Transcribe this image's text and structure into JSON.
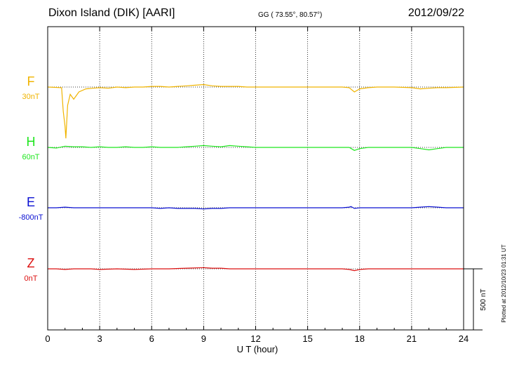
{
  "header": {
    "title": "Dixon Island (DIK)  [AARI]",
    "coords": "GG ( 73.55°,  80.57°)",
    "date": "2012/09/22"
  },
  "colors": {
    "F": "#f0b400",
    "H": "#1ee61e",
    "E": "#0a10d2",
    "Z": "#dc1010"
  },
  "chart_data": {
    "type": "line",
    "title": "Dixon Island (DIK)  [AARI]",
    "date": "2012/09/22",
    "xlabel": "U T (hour)",
    "xlim": [
      0,
      24
    ],
    "xticks": [
      0,
      3,
      6,
      9,
      12,
      15,
      18,
      21,
      24
    ],
    "x_tick_labels": [
      "0",
      "3",
      "6",
      "9",
      "12",
      "15",
      "18",
      "21",
      "24"
    ],
    "scale_bar": "500 nT",
    "scale_bar_nT": 500,
    "plotted_note": "Plotted at 2012/10/23 01:31  UT",
    "grid": true,
    "series": [
      {
        "name": "F",
        "baseline": "30nT",
        "x": [
          0,
          0.8,
          0.9,
          1.0,
          1.05,
          1.1,
          1.15,
          1.3,
          1.5,
          1.8,
          2.2,
          2.6,
          3,
          3.5,
          4,
          4.5,
          5,
          5.5,
          6,
          6.5,
          7,
          7.5,
          8,
          8.5,
          9,
          9.5,
          10,
          10.5,
          11,
          11.5,
          12,
          13,
          14,
          15,
          16,
          17,
          17.4,
          17.7,
          18,
          18.5,
          19,
          20,
          21,
          21.5,
          22,
          22.5,
          23,
          24
        ],
        "y": [
          0,
          -5,
          -200,
          -320,
          -420,
          -280,
          -150,
          -60,
          -100,
          -40,
          -15,
          -10,
          -5,
          -10,
          0,
          -5,
          0,
          0,
          5,
          5,
          0,
          5,
          10,
          15,
          20,
          10,
          5,
          5,
          5,
          0,
          0,
          0,
          0,
          0,
          0,
          0,
          -5,
          -40,
          -15,
          -5,
          0,
          0,
          -5,
          -15,
          -10,
          -5,
          -5,
          0
        ]
      },
      {
        "name": "H",
        "baseline": "60nT",
        "x": [
          0,
          0.5,
          1,
          1.5,
          2,
          2.5,
          3,
          3.5,
          4,
          4.5,
          5,
          5.5,
          6,
          6.5,
          7,
          7.5,
          8,
          8.5,
          9,
          9.5,
          10,
          10.5,
          11,
          11.5,
          12,
          13,
          14,
          15,
          16,
          17,
          17.4,
          17.7,
          18,
          18.5,
          19,
          20,
          21,
          21.5,
          22,
          22.5,
          23,
          24
        ],
        "y": [
          0,
          -5,
          10,
          5,
          5,
          0,
          5,
          0,
          0,
          5,
          0,
          0,
          5,
          0,
          0,
          0,
          5,
          10,
          15,
          10,
          5,
          15,
          10,
          5,
          0,
          0,
          0,
          0,
          0,
          0,
          0,
          -25,
          -10,
          0,
          0,
          0,
          0,
          -10,
          -20,
          -10,
          0,
          0
        ]
      },
      {
        "name": "E",
        "baseline": "-800nT",
        "x": [
          0,
          0.5,
          1,
          1.5,
          2,
          2.5,
          3,
          3.5,
          4,
          4.5,
          5,
          5.5,
          6,
          6.5,
          7,
          7.5,
          8,
          8.5,
          9,
          9.5,
          10,
          10.5,
          11,
          11.5,
          12,
          13,
          14,
          15,
          16,
          17,
          17.4,
          17.5,
          17.7,
          18,
          19,
          20,
          21,
          21.5,
          22,
          22.5,
          23,
          24
        ],
        "y": [
          0,
          0,
          5,
          0,
          0,
          0,
          0,
          0,
          0,
          0,
          0,
          0,
          0,
          -5,
          0,
          -5,
          -5,
          -5,
          -10,
          -5,
          -5,
          0,
          0,
          0,
          0,
          0,
          0,
          0,
          0,
          0,
          5,
          10,
          -5,
          0,
          0,
          0,
          0,
          5,
          10,
          5,
          0,
          0
        ]
      },
      {
        "name": "Z",
        "baseline": "0nT",
        "x": [
          0,
          0.5,
          1,
          1.5,
          2,
          2.5,
          3,
          4,
          5,
          6,
          7,
          8,
          9,
          9.5,
          10,
          10.5,
          11,
          11.5,
          12,
          13,
          14,
          15,
          16,
          17,
          17.4,
          17.7,
          18,
          18.5,
          19,
          20,
          21,
          22,
          23,
          24
        ],
        "y": [
          0,
          0,
          -5,
          0,
          0,
          0,
          -5,
          0,
          -5,
          0,
          0,
          5,
          10,
          5,
          5,
          0,
          0,
          0,
          0,
          0,
          0,
          0,
          0,
          0,
          -5,
          -15,
          -5,
          0,
          0,
          0,
          0,
          0,
          0,
          0
        ]
      }
    ]
  }
}
